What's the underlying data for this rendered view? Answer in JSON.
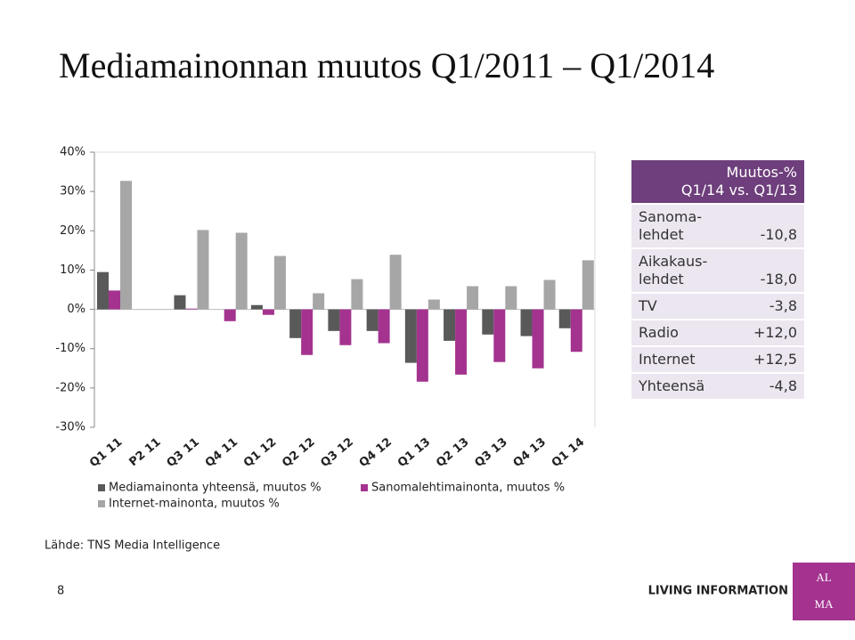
{
  "title": "Mediamainonnan muutos Q1/2011 – Q1/2014",
  "chart_data": {
    "type": "bar",
    "categories": [
      "Q1 11",
      "P2 11",
      "Q3 11",
      "Q4 11",
      "Q1 12",
      "Q2 12",
      "Q3 12",
      "Q4 12",
      "Q1 13",
      "Q2 13",
      "Q3 13",
      "Q4 13",
      "Q1 14"
    ],
    "series": [
      {
        "name": "Mediamainonta yhteensä, muutos %",
        "color": "#595959",
        "values": [
          9.5,
          null,
          3.6,
          0,
          1.1,
          -7.3,
          -5.5,
          -5.5,
          -13.6,
          -8.0,
          -6.4,
          -6.8,
          -4.8
        ]
      },
      {
        "name": "Sanomalehtimainonta, muutos %",
        "color": "#a3338f",
        "values": [
          4.8,
          null,
          0.2,
          -3.0,
          -1.4,
          -11.6,
          -9.1,
          -8.6,
          -18.4,
          -16.6,
          -13.4,
          -15.0,
          -10.8
        ]
      },
      {
        "name": "Internet-mainonta, muutos %",
        "color": "#a6a6a6",
        "values": [
          32.7,
          null,
          20.2,
          19.5,
          13.6,
          4.1,
          7.7,
          13.9,
          2.5,
          5.9,
          5.9,
          7.5,
          12.5
        ]
      }
    ],
    "ylim": [
      -30,
      40
    ],
    "yticks": [
      {
        "value": -30,
        "label": "-30%"
      },
      {
        "value": -20,
        "label": "-20%"
      },
      {
        "value": -10,
        "label": "-10%"
      },
      {
        "value": 0,
        "label": "0%"
      },
      {
        "value": 10,
        "label": "10%"
      },
      {
        "value": 20,
        "label": "20%"
      },
      {
        "value": 30,
        "label": "30%"
      },
      {
        "value": 40,
        "label": "40%"
      }
    ],
    "grid": false
  },
  "table": {
    "header": [
      "Muutos-%",
      "Q1/14 vs. Q1/13"
    ],
    "rows": [
      [
        [
          "Sanoma-",
          "lehdet"
        ],
        "-10,8"
      ],
      [
        [
          "Aikakaus-",
          "lehdet"
        ],
        "-18,0"
      ],
      [
        [
          "TV"
        ],
        "-3,8"
      ],
      [
        [
          "Radio"
        ],
        "+12,0"
      ],
      [
        [
          "Internet"
        ],
        "+12,5"
      ],
      [
        [
          "Yhteensä"
        ],
        "-4,8"
      ]
    ]
  },
  "source": "Lähde: TNS Media Intelligence",
  "page_number": "8",
  "logo": {
    "tagline": "LIVING INFORMATION",
    "mark": [
      "AL",
      "MA"
    ]
  }
}
